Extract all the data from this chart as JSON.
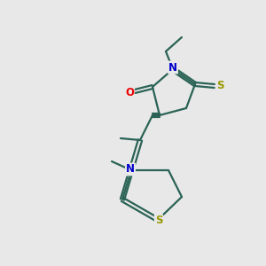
{
  "bg_color": "#e8e8e8",
  "atom_colors": {
    "S": "#999900",
    "N": "#0000cc",
    "O": "#ee0000",
    "bond": "#2a6355"
  },
  "figsize": [
    3.0,
    3.0
  ],
  "dpi": 100
}
